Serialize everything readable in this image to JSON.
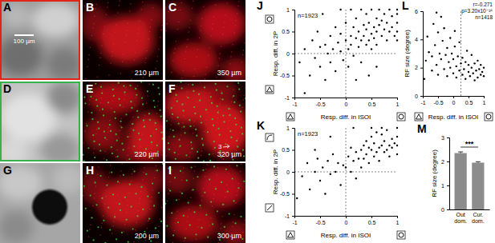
{
  "panels": [
    {
      "label": "A",
      "scale_bar": "100 µm"
    },
    {
      "label": "B",
      "depth": "210 µm"
    },
    {
      "label": "C",
      "depth": "350 µm"
    },
    {
      "label": "D"
    },
    {
      "label": "E",
      "depth": "220 µm"
    },
    {
      "label": "F",
      "depth": "320 µm",
      "marker": "3"
    },
    {
      "label": "G"
    },
    {
      "label": "H",
      "depth": "200 µm"
    },
    {
      "label": "I",
      "depth": "300 µm"
    }
  ],
  "chart_data": [
    {
      "type": "scatter",
      "title": "J",
      "xlabel": "Resp. diff. in ISOI",
      "ylabel": "Resp. diff. in 2P",
      "annotations": [
        "n=1923"
      ],
      "marker": "circle",
      "color": "#000000",
      "xlim": [
        -1,
        1
      ],
      "ylim": [
        -1,
        1
      ],
      "xticks": [
        -1,
        -0.5,
        0,
        0.5,
        1
      ],
      "yticks": [
        -1,
        -0.5,
        0,
        0.5,
        1
      ],
      "vlines": [
        0
      ],
      "hlines": [
        0
      ],
      "x": [
        -0.9,
        -0.8,
        -0.7,
        -0.65,
        -0.6,
        -0.55,
        -0.5,
        -0.5,
        -0.45,
        -0.4,
        -0.4,
        -0.35,
        -0.3,
        -0.3,
        -0.25,
        -0.2,
        -0.2,
        -0.15,
        -0.1,
        -0.1,
        -0.05,
        0,
        0,
        0.05,
        0.05,
        0.1,
        0.1,
        0.15,
        0.15,
        0.2,
        0.2,
        0.25,
        0.25,
        0.3,
        0.3,
        0.3,
        0.35,
        0.35,
        0.4,
        0.4,
        0.4,
        0.45,
        0.45,
        0.5,
        0.5,
        0.5,
        0.55,
        0.55,
        0.6,
        0.6,
        0.6,
        0.65,
        0.65,
        0.7,
        0.7,
        0.75,
        0.75,
        0.8,
        0.8,
        0.85,
        0.85,
        0.9,
        0.9,
        0.95,
        1,
        1,
        1,
        1,
        1,
        0.1,
        -0.1,
        0.2,
        0.6,
        -0.8,
        0.45
      ],
      "values": [
        -0.2,
        0.1,
        -0.5,
        0.3,
        -0.1,
        0.5,
        -0.3,
        0.15,
        0.9,
        -0.6,
        0.2,
        0,
        0.4,
        -0.2,
        0.1,
        0.6,
        -0.4,
        0.25,
        0.05,
        0.45,
        -0.15,
        0.3,
        0.7,
        0.1,
        -0.3,
        0.4,
        0.2,
        0.6,
        -0.05,
        0.35,
        0.8,
        0.15,
        0.5,
        0.3,
        -0.2,
        1,
        0.65,
        0.4,
        0.2,
        0.55,
        0.9,
        0.3,
        0.7,
        0.45,
        0.1,
        1,
        0.6,
        0.35,
        0.8,
        0.5,
        0.2,
        0.65,
        1,
        0.4,
        0.75,
        0.55,
        0.9,
        0.3,
        0.7,
        0.5,
        1,
        0.6,
        0.85,
        0.4,
        0.5,
        0.7,
        0.9,
        0.3,
        1,
        1,
        1,
        -0.6,
        -0.3,
        -0.9,
        -0.5
      ]
    },
    {
      "type": "scatter",
      "title": "K",
      "xlabel": "Resp. diff. in ISOI",
      "ylabel": "Resp. diff. in 2P",
      "annotations": [
        "n=1923"
      ],
      "marker": "circle",
      "color": "#000000",
      "xlim": [
        -1,
        1
      ],
      "ylim": [
        -1,
        1
      ],
      "xticks": [
        -1,
        -0.5,
        0,
        0.5,
        1
      ],
      "yticks": [
        -1,
        -0.5,
        0,
        0.5,
        1
      ],
      "vlines": [
        0
      ],
      "hlines": [
        0
      ],
      "x": [
        -0.95,
        -0.85,
        -0.75,
        -0.7,
        -0.6,
        -0.55,
        -0.5,
        -0.45,
        -0.4,
        -0.35,
        -0.3,
        -0.25,
        -0.2,
        -0.15,
        -0.1,
        -0.05,
        0,
        0.05,
        0.1,
        0.1,
        0.15,
        0.2,
        0.2,
        0.25,
        0.3,
        0.3,
        0.35,
        0.35,
        0.4,
        0.4,
        0.45,
        0.45,
        0.5,
        0.5,
        0.55,
        0.55,
        0.6,
        0.6,
        0.65,
        0.65,
        0.7,
        0.7,
        0.75,
        0.75,
        0.8,
        0.8,
        0.85,
        0.85,
        0.9,
        0.9,
        0.95,
        1,
        1,
        1,
        1,
        -0.6,
        -0.3,
        0.15,
        0.5,
        0.7
      ],
      "values": [
        -0.6,
        -0.1,
        0.2,
        -0.4,
        0,
        0.3,
        -0.2,
        0.1,
        -0.5,
        0.25,
        -0.05,
        0.4,
        0,
        0.2,
        -0.3,
        0.15,
        0.1,
        0.35,
        0,
        0.55,
        0.25,
        0.45,
        -0.15,
        0.3,
        0.5,
        0.1,
        0.6,
        0.3,
        0.4,
        0.7,
        0.2,
        0.55,
        0.5,
        0.8,
        0.35,
        0.65,
        0.45,
        0.9,
        0.55,
        0.25,
        0.6,
        0.85,
        0.45,
        0.7,
        0.5,
        0.95,
        0.6,
        0.35,
        0.75,
        0.55,
        0.65,
        0.4,
        0.6,
        0.8,
        1,
        0.5,
        0.8,
        1,
        1,
        1
      ]
    },
    {
      "type": "scatter",
      "title": "L",
      "xlabel": "Resp. diff. in ISOI",
      "ylabel": "RF size (degree)",
      "annotations": [
        "r=-0.271",
        "p=3.20x10⁻²⁵",
        "n=1418"
      ],
      "marker": "circle",
      "color": "#000000",
      "xlim": [
        -1,
        1
      ],
      "ylim": [
        0,
        6
      ],
      "xticks": [
        -1,
        -0.5,
        0,
        0.5,
        1
      ],
      "yticks": [
        0,
        2,
        4,
        6
      ],
      "vlines": [
        0.25
      ],
      "x": [
        -0.9,
        -0.85,
        -0.8,
        -0.7,
        -0.65,
        -0.6,
        -0.55,
        -0.5,
        -0.5,
        -0.45,
        -0.4,
        -0.4,
        -0.35,
        -0.3,
        -0.3,
        -0.25,
        -0.2,
        -0.2,
        -0.15,
        -0.1,
        -0.1,
        -0.05,
        0,
        0,
        0.05,
        0.1,
        0.1,
        0.15,
        0.2,
        0.2,
        0.25,
        0.3,
        0.3,
        0.35,
        0.4,
        0.4,
        0.45,
        0.5,
        0.5,
        0.55,
        0.6,
        0.6,
        0.65,
        0.7,
        0.7,
        0.75,
        0.8,
        0.8,
        0.85,
        0.9,
        0.9,
        0.95,
        1,
        1,
        -0.95,
        -0.7,
        0.05,
        -0.55
      ],
      "values": [
        2.5,
        4.2,
        3.1,
        1.8,
        5.1,
        3.6,
        2.2,
        4.5,
        1.5,
        3,
        5.6,
        2.6,
        3.9,
        1.9,
        4.8,
        2.9,
        3.4,
        1.4,
        2.4,
        4.1,
        2,
        3,
        1.6,
        2.6,
        3.5,
        2.1,
        1.3,
        2.8,
        1.8,
        3.8,
        2.3,
        1.5,
        2.7,
        1.9,
        2.4,
        1.2,
        3.2,
        1.7,
        2.2,
        1.4,
        2,
        2.9,
        1.6,
        2.3,
        1.1,
        1.8,
        2.5,
        1.3,
        1.9,
        1.5,
        2.2,
        1.7,
        1.4,
        2,
        1.2,
        2.8,
        4.6,
        5.9
      ]
    },
    {
      "type": "bar",
      "title": "M",
      "ylabel": "RF size (degree)",
      "annotations": [
        "***"
      ],
      "categories": [
        "Out dom.",
        "Cur. dom."
      ],
      "values": [
        2.35,
        1.95
      ],
      "errors": [
        0.05,
        0.04
      ],
      "color": "#8c8c8c",
      "ylim": [
        0,
        3
      ],
      "yticks": [
        0,
        1,
        2,
        3
      ]
    }
  ]
}
